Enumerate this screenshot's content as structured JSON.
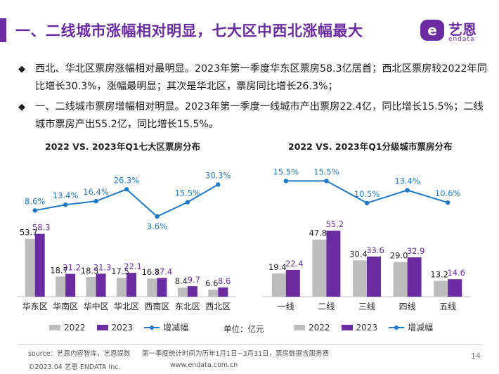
{
  "header": {
    "title": "一、二线城市涨幅相对明显，七大区中西北涨幅最大",
    "logo_badge": "e",
    "logo_cn": "艺恩",
    "logo_en": "endata"
  },
  "bullets": [
    {
      "mark": "◆",
      "text": "西北、华北区票房涨幅相对最明显。2023年第一季度华东区票房58.3亿居首；西北区票房较2022年同比增长30.3%，涨幅最明显；其次是华北区，票房同比增长26.3%；"
    },
    {
      "mark": "◆",
      "text": "一、二线城市票房增幅相对明显。2023年第一季度一线城市产出票房22.4亿，同比增长15.5%；二线城市票房产出55.2亿，同比增长15.5%。"
    }
  ],
  "colors": {
    "series_2022": "#bdbdbd",
    "series_2023": "#6a2ca0",
    "growth_line": "#1f78c8",
    "brand": "#6a2ca0"
  },
  "legend": {
    "label_2022": "2022",
    "label_2023": "2023",
    "label_growth": "增减幅"
  },
  "unit": "单位：亿元",
  "chart_data": [
    {
      "type": "bar",
      "title": "2022 VS. 2023年Q1七大区票房分布",
      "categories": [
        "华东区",
        "华南区",
        "华中区",
        "华北区",
        "西南区",
        "东北区",
        "西北区"
      ],
      "series": [
        {
          "name": "2022",
          "values": [
            53.7,
            18.7,
            18.3,
            17.5,
            16.8,
            8.4,
            6.6
          ],
          "labels": [
            "53.7",
            "18.7",
            "18.3",
            "17.5",
            "16.8",
            "8.4",
            "6.6"
          ]
        },
        {
          "name": "2023",
          "values": [
            58.3,
            21.2,
            21.3,
            22.1,
            17.4,
            9.7,
            8.6
          ],
          "labels": [
            "58.3",
            "21.2",
            "21.3",
            "22.1",
            "17.4",
            "9.7",
            "8.6"
          ]
        },
        {
          "name": "增减幅",
          "type": "line",
          "values": [
            8.6,
            13.4,
            16.4,
            26.3,
            3.6,
            15.5,
            30.3
          ],
          "labels": [
            "8.6%",
            "13.4%",
            "16.4%",
            "26.3%",
            "3.6%",
            "15.5%",
            "30.3%"
          ]
        }
      ],
      "ylim": [
        0,
        60
      ],
      "line_ylim": [
        -60,
        40
      ],
      "grid": false,
      "legend": "bottom"
    },
    {
      "type": "bar",
      "title": "2022 VS. 2023年Q1分级城市票房分布",
      "categories": [
        "一线",
        "二线",
        "三线",
        "四线",
        "五线"
      ],
      "series": [
        {
          "name": "2022",
          "values": [
            19.4,
            47.8,
            30.4,
            29.0,
            13.2
          ],
          "labels": [
            "19.4",
            "47.8",
            "30.4",
            "29.0",
            "13.2"
          ]
        },
        {
          "name": "2023",
          "values": [
            22.4,
            55.2,
            33.6,
            32.9,
            14.6
          ],
          "labels": [
            "22.4",
            "55.2",
            "33.6",
            "32.9",
            "14.6"
          ]
        },
        {
          "name": "增减幅",
          "type": "line",
          "values": [
            15.5,
            15.5,
            10.5,
            13.4,
            10.6
          ],
          "labels": [
            "15.5%",
            "15.5%",
            "10.5%",
            "13.4%",
            "10.6%"
          ]
        }
      ],
      "ylim": [
        0,
        60
      ],
      "line_ylim": [
        -5,
        17
      ],
      "grid": false,
      "legend": "bottom"
    }
  ],
  "footer": {
    "source": "source：艺恩内容智库，艺恩娱数",
    "note": "第一季度统计时间为历年1月1日~3月31日，票房数据含服务费",
    "copyright": "©2023.04 艺恩 ENDATA Inc.",
    "website": "www.endata.com.cn",
    "page_number": "14"
  }
}
